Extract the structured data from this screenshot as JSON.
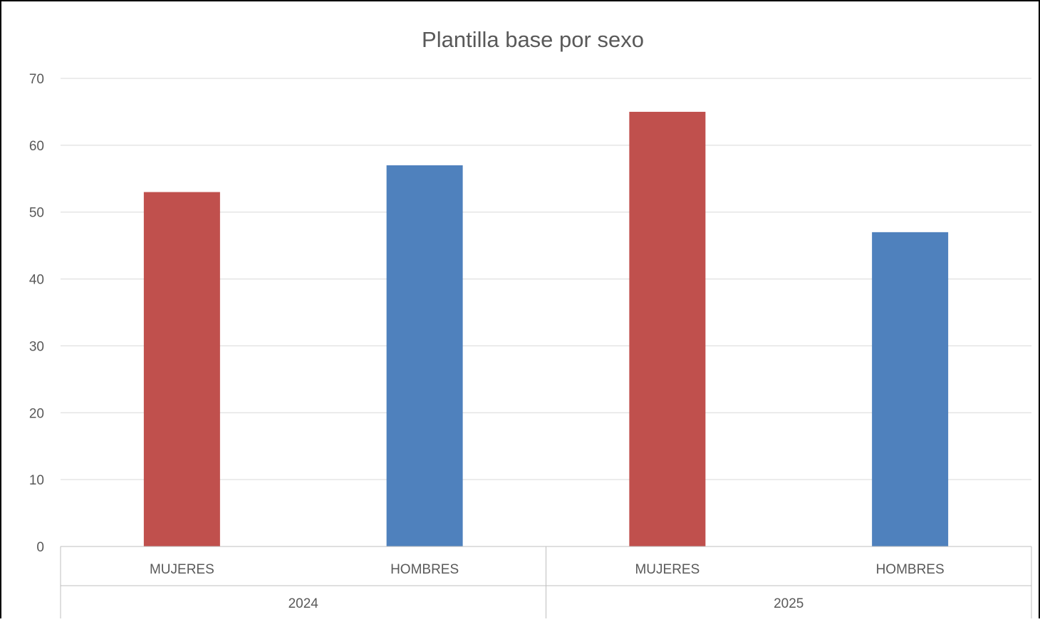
{
  "chart_data": {
    "type": "bar",
    "title": "Plantilla base por sexo",
    "xlabel": "",
    "ylabel": "",
    "ylim": [
      0,
      70
    ],
    "yticks": [
      0,
      10,
      20,
      30,
      40,
      50,
      60,
      70
    ],
    "grid": true,
    "legend": "none",
    "groups": [
      {
        "label": "2024",
        "categories": [
          "MUJERES",
          "HOMBRES"
        ]
      },
      {
        "label": "2025",
        "categories": [
          "MUJERES",
          "HOMBRES"
        ]
      }
    ],
    "categories": [
      "MUJERES",
      "HOMBRES",
      "MUJERES",
      "HOMBRES"
    ],
    "values": [
      53,
      57,
      65,
      47
    ],
    "bar_colors": [
      "#c0504d",
      "#4f81bd",
      "#c0504d",
      "#4f81bd"
    ],
    "colors": {
      "grid": "#d9d9d9",
      "axis": "#bfbfbf",
      "text": "#595959",
      "border": "#000000"
    }
  }
}
